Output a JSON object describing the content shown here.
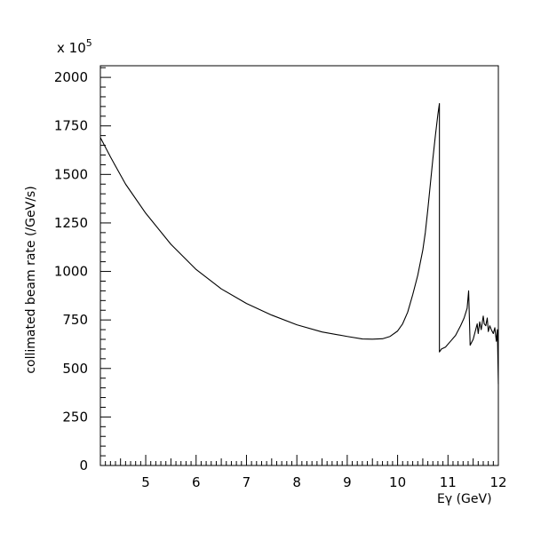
{
  "chart_data": {
    "type": "line",
    "title": "",
    "xlabel": "Eγ (GeV)",
    "ylabel": "collimated beam rate (/GeV/s)",
    "y_multiplier": "x 10",
    "y_multiplier_exponent": "5",
    "xlim": [
      4.1,
      12.0
    ],
    "ylim": [
      0,
      2060
    ],
    "x_ticks": [
      5,
      6,
      7,
      8,
      9,
      10,
      11,
      12
    ],
    "y_ticks": [
      0,
      250,
      500,
      750,
      1000,
      1250,
      1500,
      1750,
      2000
    ],
    "x_tick_labels": [
      "5",
      "6",
      "7",
      "8",
      "9",
      "10",
      "11",
      "12"
    ],
    "y_tick_labels": [
      "0",
      "250",
      "500",
      "750",
      "1000",
      "1250",
      "1500",
      "1750",
      "2000"
    ],
    "grid": false,
    "legend": "none",
    "series": [
      {
        "x": [
          4.1,
          4.3,
          4.6,
          5.0,
          5.5,
          6.0,
          6.5,
          7.0,
          7.5,
          8.0,
          8.5,
          9.0,
          9.3,
          9.5,
          9.7,
          9.85,
          10.0,
          10.1,
          10.2,
          10.3,
          10.4,
          10.5,
          10.55,
          10.6,
          10.65,
          10.7,
          10.75,
          10.8,
          10.83,
          10.83,
          10.87,
          10.95,
          11.05,
          11.15,
          11.25,
          11.32,
          11.38,
          11.41,
          11.44,
          11.5,
          11.55,
          11.58,
          11.6,
          11.63,
          11.66,
          11.7,
          11.72,
          11.75,
          11.78,
          11.8,
          11.83,
          11.86,
          11.9,
          11.93,
          11.96,
          11.98,
          12.0
        ],
        "y": [
          1690,
          1590,
          1450,
          1300,
          1140,
          1010,
          910,
          835,
          775,
          725,
          688,
          665,
          652,
          651,
          653,
          665,
          693,
          730,
          790,
          880,
          980,
          1110,
          1200,
          1320,
          1450,
          1580,
          1700,
          1810,
          1865,
          585,
          600,
          610,
          640,
          670,
          720,
          760,
          810,
          900,
          620,
          650,
          700,
          730,
          680,
          740,
          700,
          770,
          730,
          720,
          760,
          690,
          720,
          700,
          680,
          710,
          640,
          700,
          420
        ]
      }
    ]
  }
}
